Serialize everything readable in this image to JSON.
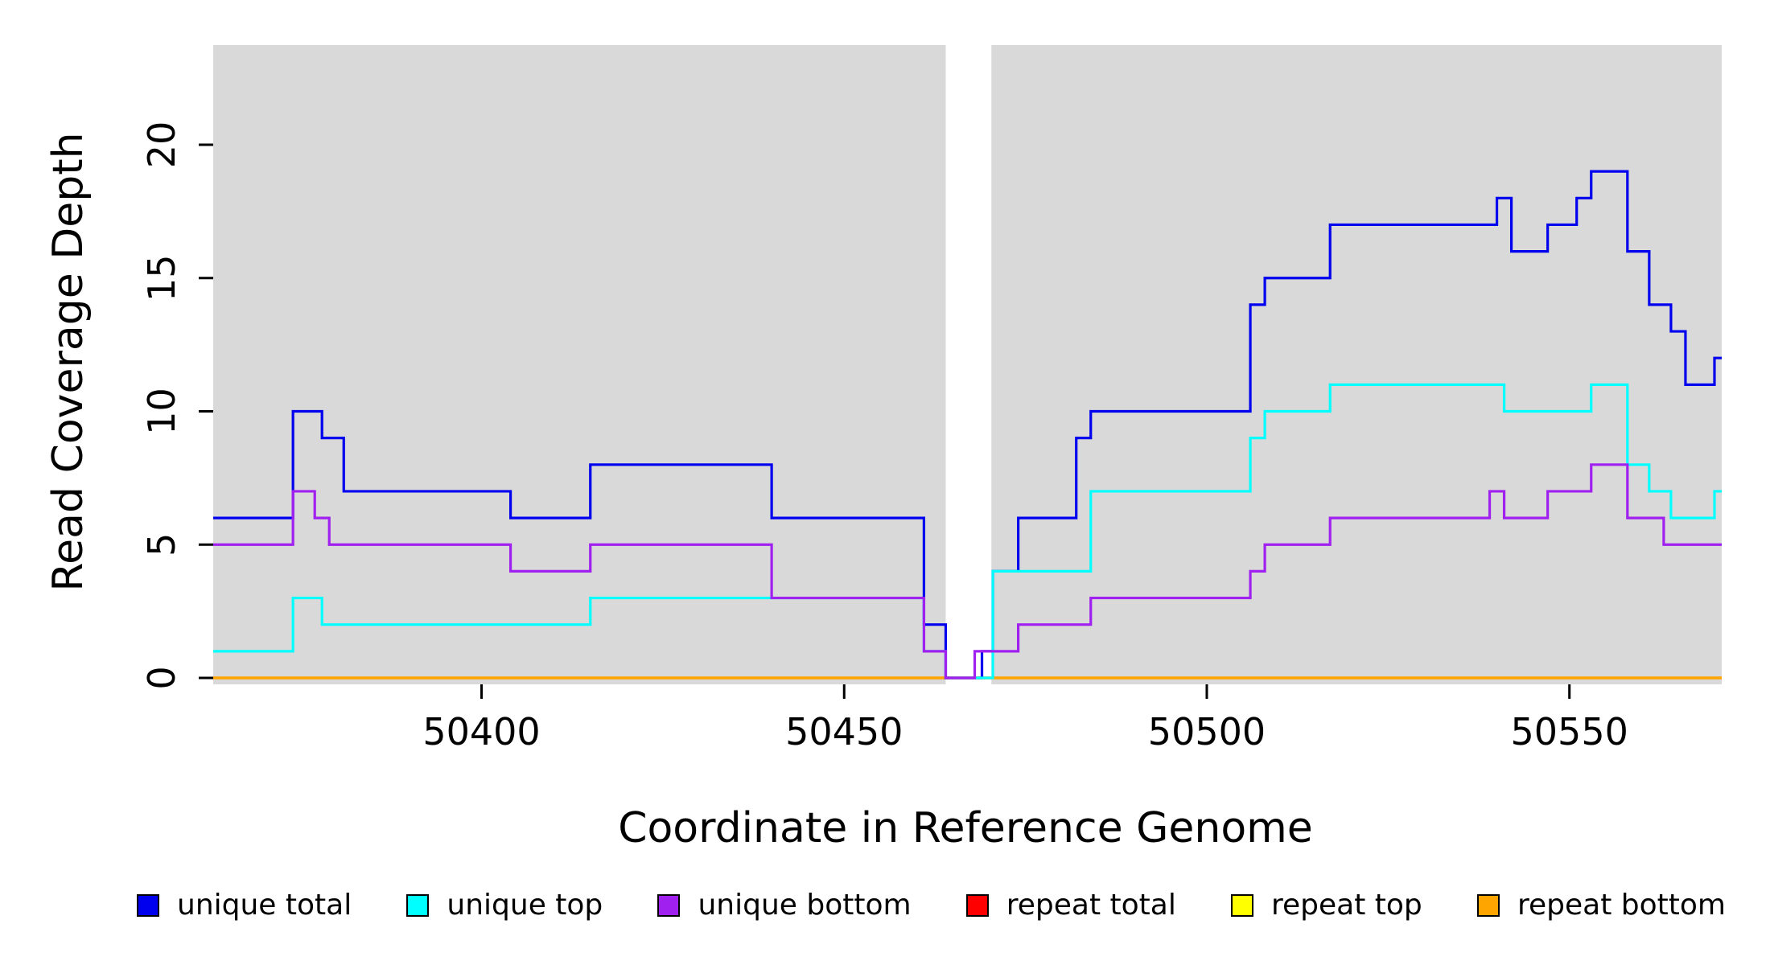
{
  "chart_data": {
    "type": "line",
    "subtype": "step",
    "title": "",
    "xlabel": "Coordinate in Reference Genome",
    "ylabel": "Read Coverage Depth",
    "xlim": [
      50363,
      50571
    ],
    "ylim": [
      0,
      23.7
    ],
    "x_end": 50571,
    "x_ticks": [
      50400,
      50450,
      50500,
      50550
    ],
    "y_ticks": [
      0,
      5,
      10,
      15,
      20
    ],
    "grid": false,
    "legend_position": "bottom",
    "background": {
      "plot_bg": "#d9d9d9",
      "gap_region": [
        50464,
        50470.3
      ]
    },
    "series": [
      {
        "name": "repeat total",
        "color": "#ff0000",
        "steps": [
          [
            50363,
            0
          ]
        ]
      },
      {
        "name": "repeat top",
        "color": "#ffff00",
        "steps": [
          [
            50363,
            0
          ]
        ]
      },
      {
        "name": "repeat bottom",
        "color": "#ffa500",
        "steps": [
          [
            50363,
            0
          ]
        ]
      },
      {
        "name": "unique total",
        "color": "#0000ee",
        "steps": [
          [
            50363,
            6
          ],
          [
            50374,
            10
          ],
          [
            50378,
            9
          ],
          [
            50381,
            7
          ],
          [
            50404,
            6
          ],
          [
            50415,
            8
          ],
          [
            50440,
            6
          ],
          [
            50461,
            2
          ],
          [
            50464,
            0
          ],
          [
            50469,
            1
          ],
          [
            50470.5,
            4
          ],
          [
            50474,
            6
          ],
          [
            50482,
            9
          ],
          [
            50484,
            10
          ],
          [
            50506,
            14
          ],
          [
            50508,
            15
          ],
          [
            50517,
            17
          ],
          [
            50540,
            18
          ],
          [
            50542,
            16
          ],
          [
            50547,
            17
          ],
          [
            50551,
            18
          ],
          [
            50553,
            19
          ],
          [
            50558,
            16
          ],
          [
            50561,
            14
          ],
          [
            50564,
            13
          ],
          [
            50566,
            11
          ],
          [
            50570,
            12
          ]
        ]
      },
      {
        "name": "unique top",
        "color": "#00ffff",
        "steps": [
          [
            50363,
            1
          ],
          [
            50374,
            3
          ],
          [
            50378,
            2
          ],
          [
            50415,
            3
          ],
          [
            50461,
            1
          ],
          [
            50464,
            0
          ],
          [
            50470.5,
            4
          ],
          [
            50484,
            7
          ],
          [
            50506,
            9
          ],
          [
            50508,
            10
          ],
          [
            50517,
            11
          ],
          [
            50541,
            10
          ],
          [
            50553,
            11
          ],
          [
            50558,
            8
          ],
          [
            50561,
            7
          ],
          [
            50564,
            6
          ],
          [
            50570,
            7
          ]
        ]
      },
      {
        "name": "unique bottom",
        "color": "#a020f0",
        "steps": [
          [
            50363,
            5
          ],
          [
            50374,
            7
          ],
          [
            50377,
            6
          ],
          [
            50379,
            5
          ],
          [
            50404,
            4
          ],
          [
            50415,
            5
          ],
          [
            50440,
            3
          ],
          [
            50461,
            1
          ],
          [
            50464,
            0
          ],
          [
            50468,
            1
          ],
          [
            50474,
            2
          ],
          [
            50484,
            3
          ],
          [
            50506,
            4
          ],
          [
            50508,
            5
          ],
          [
            50517,
            6
          ],
          [
            50539,
            7
          ],
          [
            50541,
            6
          ],
          [
            50547,
            7
          ],
          [
            50553,
            8
          ],
          [
            50558,
            6
          ],
          [
            50563,
            5
          ]
        ]
      }
    ],
    "legend": [
      {
        "label": "unique total",
        "color": "#0000ee"
      },
      {
        "label": "unique top",
        "color": "#00ffff"
      },
      {
        "label": "unique bottom",
        "color": "#a020f0"
      },
      {
        "label": "repeat total",
        "color": "#ff0000"
      },
      {
        "label": "repeat top",
        "color": "#ffff00"
      },
      {
        "label": "repeat bottom",
        "color": "#ffa500"
      }
    ]
  }
}
